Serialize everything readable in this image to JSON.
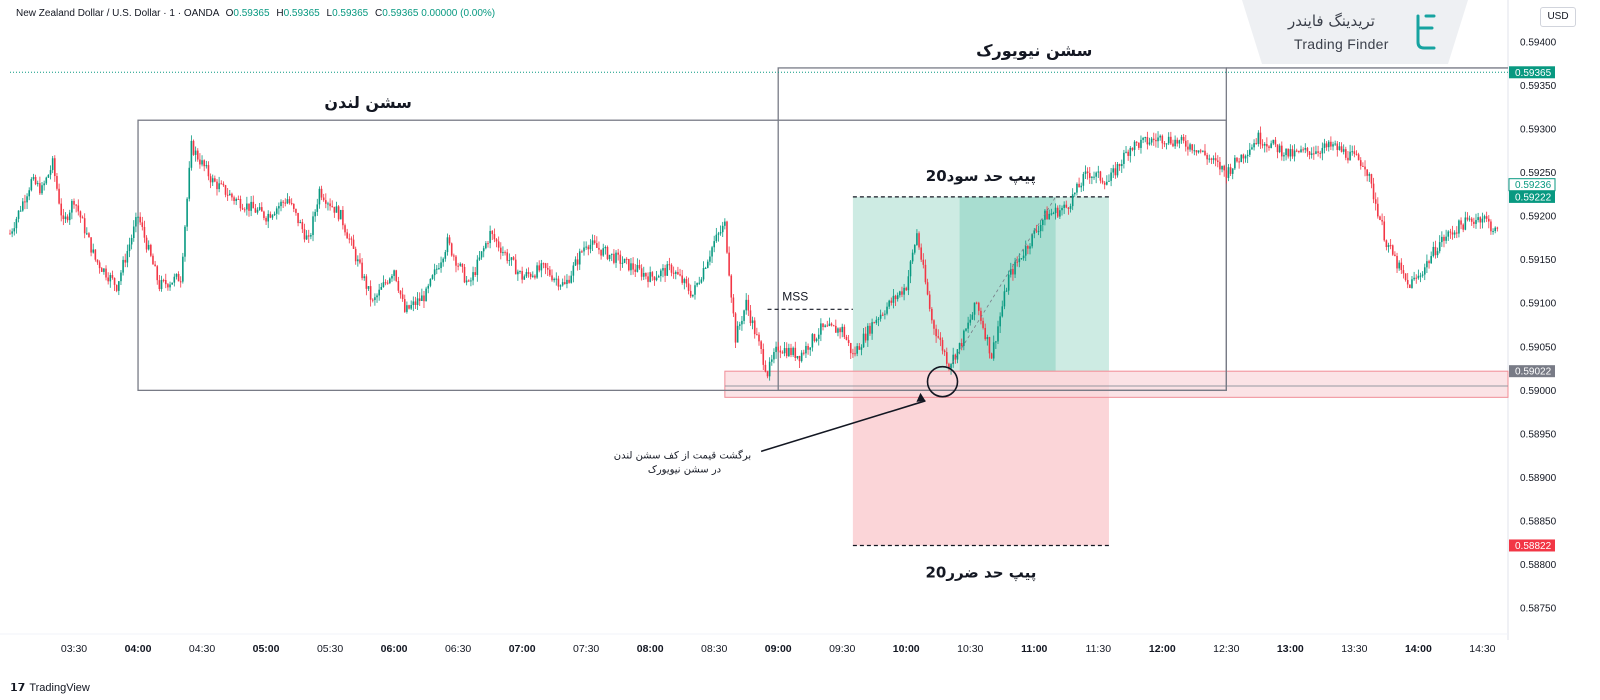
{
  "header": {
    "symbol": "New Zealand Dollar / U.S. Dollar · 1 · OANDA",
    "o_label": "O",
    "o_value": "0.59365",
    "h_label": "H",
    "h_value": "0.59365",
    "l_label": "L",
    "l_value": "0.59365",
    "c_label": "C",
    "c_value": "0.59365",
    "change": "0.00000 (0.00%)"
  },
  "currency_button": "USD",
  "logo": {
    "fa": "تریدینگ فایندر",
    "en": "Trading Finder"
  },
  "brand": "TradingView",
  "annotations": {
    "london_session": "سشن لندن",
    "newyork_session": "سشن نیویورک",
    "take_profit": "20پیپ حد سود",
    "stop_loss": "20پیپ حد ضرر",
    "mss": "MSS",
    "note_line1": "برگشت قیمت از کف سشن لندن",
    "note_line2": "در سشن نیویورک"
  },
  "price_tags": [
    {
      "label": "0.59365",
      "value": 0.59365,
      "color": "#089981",
      "style": "filled"
    },
    {
      "label": "0.59236",
      "value": 0.59236,
      "color": "#089981",
      "style": "outline"
    },
    {
      "label": "0.59222",
      "value": 0.59222,
      "color": "#089981",
      "style": "filled"
    },
    {
      "label": "0.59022",
      "value": 0.59022,
      "color": "#787b86",
      "style": "filled"
    },
    {
      "label": "0.58822",
      "value": 0.58822,
      "color": "#f23645",
      "style": "filled"
    }
  ],
  "colors": {
    "up": "#089981",
    "down": "#f23645",
    "profit_zone": "#cdebe3",
    "profit_zone_dark": "#a8ddd0",
    "loss_zone": "#fbd5d8",
    "support_zone": "#f9dadd",
    "session_box": "#787b86",
    "last_price_line": "#089981"
  },
  "chart_data": {
    "type": "candlestick",
    "symbol": "NZDUSD",
    "timeframe": "1",
    "y_axis": {
      "ylim": [
        0.58725,
        0.59425
      ],
      "ticks": [
        "0.59400",
        "0.59350",
        "0.59300",
        "0.59250",
        "0.59200",
        "0.59150",
        "0.59100",
        "0.59050",
        "0.59000",
        "0.58950",
        "0.58900",
        "0.58850",
        "0.58800",
        "0.58750"
      ]
    },
    "x_axis": {
      "ticks": [
        "03:30",
        "04:00",
        "04:30",
        "05:00",
        "05:30",
        "06:00",
        "06:30",
        "07:00",
        "07:30",
        "08:00",
        "08:30",
        "09:00",
        "09:30",
        "10:00",
        "10:30",
        "11:00",
        "11:30",
        "12:00",
        "12:30",
        "13:00",
        "13:30",
        "14:00",
        "14:30"
      ],
      "bold_ticks": [
        "04:00",
        "05:00",
        "06:00",
        "07:00",
        "08:00",
        "09:00",
        "10:00",
        "11:00",
        "12:00",
        "13:00",
        "14:00"
      ]
    },
    "price_path": [
      [
        "03:00",
        0.5918
      ],
      [
        "03:10",
        0.5924
      ],
      [
        "03:15",
        0.5923
      ],
      [
        "03:20",
        0.5926
      ],
      [
        "03:25",
        0.5919
      ],
      [
        "03:30",
        0.5922
      ],
      [
        "03:40",
        0.5915
      ],
      [
        "03:50",
        0.5912
      ],
      [
        "04:00",
        0.592
      ],
      [
        "04:10",
        0.5912
      ],
      [
        "04:20",
        0.5913
      ],
      [
        "04:25",
        0.5928
      ],
      [
        "04:30",
        0.5926
      ],
      [
        "04:35",
        0.5924
      ],
      [
        "04:45",
        0.5922
      ],
      [
        "05:00",
        0.592
      ],
      [
        "05:10",
        0.5922
      ],
      [
        "05:20",
        0.5917
      ],
      [
        "05:25",
        0.5923
      ],
      [
        "05:35",
        0.592
      ],
      [
        "05:50",
        0.591
      ],
      [
        "06:00",
        0.5914
      ],
      [
        "06:05",
        0.5909
      ],
      [
        "06:15",
        0.5911
      ],
      [
        "06:25",
        0.5917
      ],
      [
        "06:35",
        0.5912
      ],
      [
        "06:45",
        0.5918
      ],
      [
        "07:00",
        0.5913
      ],
      [
        "07:10",
        0.5914
      ],
      [
        "07:20",
        0.5912
      ],
      [
        "07:30",
        0.5917
      ],
      [
        "07:45",
        0.5915
      ],
      [
        "08:00",
        0.5913
      ],
      [
        "08:10",
        0.5914
      ],
      [
        "08:20",
        0.5911
      ],
      [
        "08:30",
        0.5917
      ],
      [
        "08:35",
        0.5919
      ],
      [
        "08:40",
        0.5906
      ],
      [
        "08:45",
        0.591
      ],
      [
        "08:55",
        0.5902
      ],
      [
        "09:00",
        0.5905
      ],
      [
        "09:10",
        0.5904
      ],
      [
        "09:20",
        0.5907
      ],
      [
        "09:30",
        0.5907
      ],
      [
        "09:35",
        0.5904
      ],
      [
        "09:45",
        0.5908
      ],
      [
        "10:00",
        0.5912
      ],
      [
        "10:05",
        0.5918
      ],
      [
        "10:12",
        0.5908
      ],
      [
        "10:20",
        0.5903
      ],
      [
        "10:25",
        0.5905
      ],
      [
        "10:33",
        0.591
      ],
      [
        "10:40",
        0.5904
      ],
      [
        "10:48",
        0.5913
      ],
      [
        "11:00",
        0.5918
      ],
      [
        "11:05",
        0.592
      ],
      [
        "11:15",
        0.5921
      ],
      [
        "11:25",
        0.5925
      ],
      [
        "11:35",
        0.5924
      ],
      [
        "11:45",
        0.5928
      ],
      [
        "12:00",
        0.5929
      ],
      [
        "12:15",
        0.5928
      ],
      [
        "12:30",
        0.5925
      ],
      [
        "12:45",
        0.5929
      ],
      [
        "13:00",
        0.5927
      ],
      [
        "13:20",
        0.5928
      ],
      [
        "13:35",
        0.5926
      ],
      [
        "13:45",
        0.5917
      ],
      [
        "13:55",
        0.5912
      ],
      [
        "14:00",
        0.5913
      ],
      [
        "14:10",
        0.5917
      ],
      [
        "14:20",
        0.5919
      ],
      [
        "14:30",
        0.592
      ],
      [
        "14:37",
        0.5918
      ]
    ],
    "sessions": [
      {
        "name": "سشن لندن",
        "start": "04:00",
        "end": "12:30",
        "low": 0.59,
        "high": 0.5931
      },
      {
        "name": "سشن نیویورک",
        "start": "09:00",
        "end": "12:30",
        "low": 0.59,
        "high": 0.5937
      }
    ],
    "trade": {
      "start": "09:35",
      "entry_end": "11:10",
      "end": "11:35",
      "entry": 0.59022,
      "take_profit": 0.59222,
      "stop_loss": 0.58822,
      "tp_label": "20پیپ حد سود",
      "sl_label": "20پیپ حد ضرر"
    },
    "support_zone": {
      "start": "08:35",
      "end": "14:45",
      "low": 0.58992,
      "high": 0.59022,
      "line": 0.59005
    },
    "mss": {
      "start": "08:55",
      "end": "09:35",
      "level": 0.59093,
      "label": "MSS"
    },
    "last_price": 0.59365
  }
}
